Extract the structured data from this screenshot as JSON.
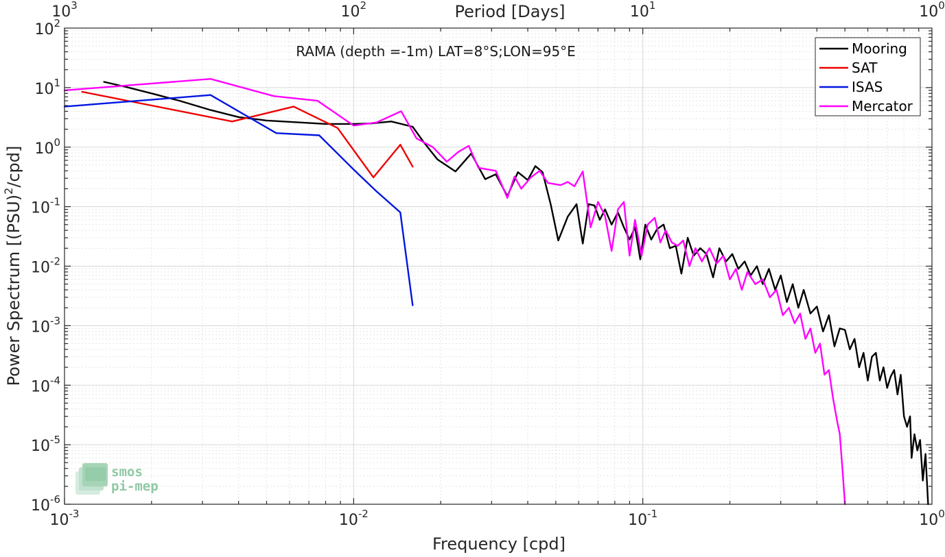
{
  "chart_data": {
    "type": "line",
    "title": "RAMA (depth =-1m) LAT=8°S;LON=95°E",
    "xlabel": "Frequency [cpd]",
    "ylabel_prefix": "Power Spectrum [(PSU)",
    "ylabel_sup": "2",
    "ylabel_suffix": "/cpd]",
    "top_axis_label": "Period [Days]",
    "x_scale": "log",
    "y_scale": "log",
    "xlim": [
      0.001,
      1
    ],
    "ylim": [
      1e-06,
      100
    ],
    "grid": true,
    "legend_position": "top-right",
    "x_ticks": [
      {
        "base": "10",
        "exp": "-3",
        "value": 0.001
      },
      {
        "base": "10",
        "exp": "-2",
        "value": 0.01
      },
      {
        "base": "10",
        "exp": "-1",
        "value": 0.1
      },
      {
        "base": "10",
        "exp": "0",
        "value": 1
      }
    ],
    "top_ticks": [
      {
        "base": "10",
        "exp": "3",
        "value": 0.001
      },
      {
        "base": "10",
        "exp": "2",
        "value": 0.01
      },
      {
        "base": "10",
        "exp": "1",
        "value": 0.1
      },
      {
        "base": "10",
        "exp": "0",
        "value": 1
      }
    ],
    "y_ticks": [
      {
        "base": "10",
        "exp": "2",
        "value": 100
      },
      {
        "base": "10",
        "exp": "1",
        "value": 10
      },
      {
        "base": "10",
        "exp": "0",
        "value": 1
      },
      {
        "base": "10",
        "exp": "-1",
        "value": 0.1
      },
      {
        "base": "10",
        "exp": "-2",
        "value": 0.01
      },
      {
        "base": "10",
        "exp": "-3",
        "value": 0.001
      },
      {
        "base": "10",
        "exp": "-4",
        "value": 0.0001
      },
      {
        "base": "10",
        "exp": "-5",
        "value": 1e-05
      },
      {
        "base": "10",
        "exp": "-6",
        "value": 1e-06
      }
    ],
    "series": [
      {
        "name": "Mooring",
        "color": "#000000",
        "points": [
          [
            0.00137,
            12.5
          ],
          [
            0.0016,
            10.5
          ],
          [
            0.002,
            8.0
          ],
          [
            0.0025,
            6.0
          ],
          [
            0.0032,
            4.2
          ],
          [
            0.004,
            3.2
          ],
          [
            0.005,
            2.8
          ],
          [
            0.0065,
            2.6
          ],
          [
            0.008,
            2.45
          ],
          [
            0.01,
            2.45
          ],
          [
            0.0115,
            2.5
          ],
          [
            0.0135,
            2.7
          ],
          [
            0.016,
            2.2
          ],
          [
            0.0175,
            1.2
          ],
          [
            0.0195,
            0.62
          ],
          [
            0.0225,
            0.39
          ],
          [
            0.0255,
            0.78
          ],
          [
            0.0285,
            0.29
          ],
          [
            0.031,
            0.35
          ],
          [
            0.034,
            0.15
          ],
          [
            0.037,
            0.38
          ],
          [
            0.04,
            0.28
          ],
          [
            0.0425,
            0.48
          ],
          [
            0.045,
            0.38
          ],
          [
            0.048,
            0.11
          ],
          [
            0.051,
            0.027
          ],
          [
            0.055,
            0.068
          ],
          [
            0.059,
            0.11
          ],
          [
            0.062,
            0.024
          ],
          [
            0.065,
            0.11
          ],
          [
            0.068,
            0.105
          ],
          [
            0.071,
            0.06
          ],
          [
            0.074,
            0.09
          ],
          [
            0.078,
            0.05
          ],
          [
            0.082,
            0.08
          ],
          [
            0.086,
            0.045
          ],
          [
            0.09,
            0.028
          ],
          [
            0.094,
            0.045
          ],
          [
            0.098,
            0.013
          ],
          [
            0.102,
            0.05
          ],
          [
            0.107,
            0.028
          ],
          [
            0.112,
            0.042
          ],
          [
            0.118,
            0.05
          ],
          [
            0.124,
            0.02
          ],
          [
            0.13,
            0.022
          ],
          [
            0.136,
            0.0075
          ],
          [
            0.143,
            0.03
          ],
          [
            0.15,
            0.015
          ],
          [
            0.158,
            0.02
          ],
          [
            0.166,
            0.016
          ],
          [
            0.175,
            0.0065
          ],
          [
            0.184,
            0.02
          ],
          [
            0.194,
            0.012
          ],
          [
            0.204,
            0.016
          ],
          [
            0.214,
            0.009
          ],
          [
            0.225,
            0.012
          ],
          [
            0.236,
            0.007
          ],
          [
            0.248,
            0.01
          ],
          [
            0.26,
            0.005
          ],
          [
            0.273,
            0.009
          ],
          [
            0.287,
            0.004
          ],
          [
            0.3,
            0.007
          ],
          [
            0.315,
            0.0025
          ],
          [
            0.33,
            0.005
          ],
          [
            0.345,
            0.002
          ],
          [
            0.36,
            0.004
          ],
          [
            0.38,
            0.0016
          ],
          [
            0.4,
            0.0021
          ],
          [
            0.42,
            0.0008
          ],
          [
            0.44,
            0.0015
          ],
          [
            0.46,
            0.00045
          ],
          [
            0.48,
            0.0009
          ],
          [
            0.5,
            0.00085
          ],
          [
            0.52,
            0.0004
          ],
          [
            0.54,
            0.0006
          ],
          [
            0.56,
            0.0002
          ],
          [
            0.58,
            0.00035
          ],
          [
            0.6,
            0.00012
          ],
          [
            0.62,
            0.0003
          ],
          [
            0.64,
            0.00035
          ],
          [
            0.66,
            0.00012
          ],
          [
            0.68,
            0.0002
          ],
          [
            0.7,
            9e-05
          ],
          [
            0.72,
            0.00014
          ],
          [
            0.74,
            0.00018
          ],
          [
            0.76,
            7e-05
          ],
          [
            0.78,
            0.00015
          ],
          [
            0.8,
            3e-05
          ],
          [
            0.82,
            2e-05
          ],
          [
            0.84,
            3e-05
          ],
          [
            0.85,
            6e-06
          ],
          [
            0.87,
            1.5e-05
          ],
          [
            0.89,
            8e-06
          ],
          [
            0.91,
            1.2e-05
          ],
          [
            0.93,
            2.5e-06
          ],
          [
            0.95,
            7e-06
          ],
          [
            0.97,
            1e-06
          ]
        ]
      },
      {
        "name": "SAT",
        "color": "#ee0000",
        "points": [
          [
            0.00115,
            8.5
          ],
          [
            0.002,
            5.0
          ],
          [
            0.0038,
            2.7
          ],
          [
            0.0062,
            4.8
          ],
          [
            0.0088,
            2.1
          ],
          [
            0.0117,
            0.31
          ],
          [
            0.0145,
            1.1
          ],
          [
            0.016,
            0.47
          ]
        ]
      },
      {
        "name": "ISAS",
        "color": "#0016e0",
        "points": [
          [
            0.001,
            4.8
          ],
          [
            0.0032,
            7.5
          ],
          [
            0.0054,
            1.72
          ],
          [
            0.0076,
            1.58
          ],
          [
            0.01,
            0.42
          ],
          [
            0.012,
            0.18
          ],
          [
            0.0145,
            0.08
          ],
          [
            0.016,
            0.0022
          ]
        ]
      },
      {
        "name": "Mercator",
        "color": "#ff00ff",
        "points": [
          [
            0.001,
            9.0
          ],
          [
            0.0032,
            14.0
          ],
          [
            0.0053,
            7.2
          ],
          [
            0.0075,
            6.0
          ],
          [
            0.01,
            2.3
          ],
          [
            0.012,
            2.6
          ],
          [
            0.0146,
            4.0
          ],
          [
            0.0165,
            1.4
          ],
          [
            0.0188,
            1.0
          ],
          [
            0.021,
            0.57
          ],
          [
            0.023,
            0.83
          ],
          [
            0.025,
            1.05
          ],
          [
            0.027,
            0.45
          ],
          [
            0.031,
            0.4
          ],
          [
            0.034,
            0.14
          ],
          [
            0.036,
            0.32
          ],
          [
            0.038,
            0.2
          ],
          [
            0.041,
            0.31
          ],
          [
            0.044,
            0.4
          ],
          [
            0.047,
            0.25
          ],
          [
            0.052,
            0.23
          ],
          [
            0.055,
            0.26
          ],
          [
            0.058,
            0.22
          ],
          [
            0.062,
            0.39
          ],
          [
            0.066,
            0.045
          ],
          [
            0.07,
            0.12
          ],
          [
            0.074,
            0.07
          ],
          [
            0.078,
            0.018
          ],
          [
            0.082,
            0.09
          ],
          [
            0.086,
            0.12
          ],
          [
            0.09,
            0.015
          ],
          [
            0.094,
            0.06
          ],
          [
            0.099,
            0.015
          ],
          [
            0.104,
            0.05
          ],
          [
            0.11,
            0.065
          ],
          [
            0.115,
            0.025
          ],
          [
            0.12,
            0.04
          ],
          [
            0.126,
            0.025
          ],
          [
            0.132,
            0.022
          ],
          [
            0.138,
            0.027
          ],
          [
            0.145,
            0.01
          ],
          [
            0.152,
            0.02
          ],
          [
            0.16,
            0.012
          ],
          [
            0.17,
            0.02
          ],
          [
            0.18,
            0.011
          ],
          [
            0.19,
            0.015
          ],
          [
            0.2,
            0.006
          ],
          [
            0.21,
            0.009
          ],
          [
            0.22,
            0.004
          ],
          [
            0.23,
            0.008
          ],
          [
            0.245,
            0.005
          ],
          [
            0.26,
            0.006
          ],
          [
            0.275,
            0.003
          ],
          [
            0.29,
            0.004
          ],
          [
            0.305,
            0.0015
          ],
          [
            0.32,
            0.002
          ],
          [
            0.335,
            0.0011
          ],
          [
            0.35,
            0.0016
          ],
          [
            0.365,
            0.0006
          ],
          [
            0.38,
            0.0009
          ],
          [
            0.395,
            0.00035
          ],
          [
            0.41,
            0.0005
          ],
          [
            0.425,
            0.00015
          ],
          [
            0.44,
            0.00018
          ],
          [
            0.455,
            6e-05
          ],
          [
            0.47,
            2.5e-05
          ],
          [
            0.48,
            1.5e-05
          ],
          [
            0.49,
            4e-06
          ],
          [
            0.5,
            1e-06
          ]
        ]
      }
    ]
  },
  "watermark": {
    "line1": "smos",
    "line2": "pi-mep",
    "color": "#8fc8a5"
  }
}
